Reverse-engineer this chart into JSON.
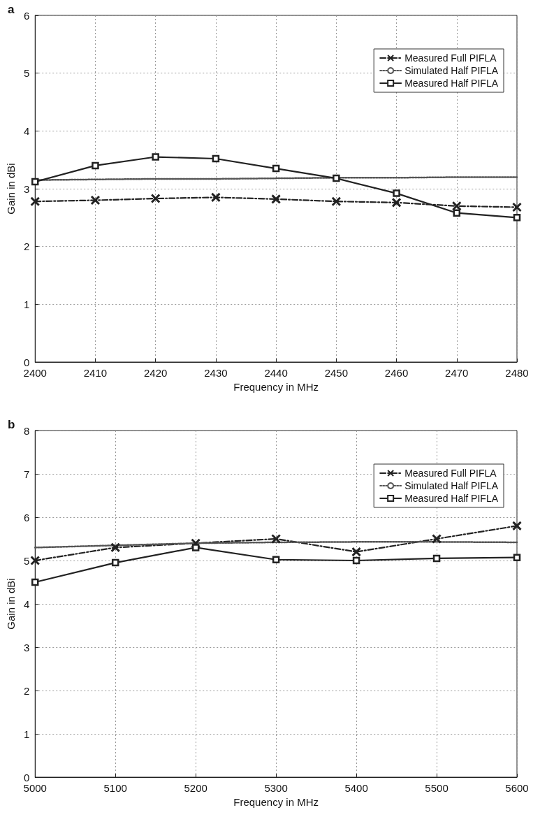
{
  "chart_data": [
    {
      "type": "line",
      "title": "a",
      "xlabel": "Frequency in MHz",
      "ylabel": "Gain in dBi",
      "x": [
        2400,
        2410,
        2420,
        2430,
        2440,
        2450,
        2460,
        2470,
        2480
      ],
      "xlim": [
        2400,
        2480
      ],
      "xticks": [
        2400,
        2410,
        2420,
        2430,
        2440,
        2450,
        2460,
        2470,
        2480
      ],
      "ylim": [
        0,
        6
      ],
      "yticks": [
        0,
        1,
        2,
        3,
        4,
        5,
        6
      ],
      "grid": true,
      "legend": "top right",
      "series": [
        {
          "name": "Measured Full PIFLA",
          "color": "#222222",
          "marker": "cross",
          "line_style": "dashed",
          "values": [
            2.78,
            2.8,
            2.83,
            2.85,
            2.82,
            2.78,
            2.76,
            2.7,
            2.68
          ]
        },
        {
          "name": "Simulated Half PIFLA",
          "color": "#555555",
          "marker": "none",
          "line_style": "dotted",
          "values": [
            3.15,
            3.16,
            3.17,
            3.17,
            3.18,
            3.19,
            3.19,
            3.2,
            3.2
          ]
        },
        {
          "name": "Measured Half PIFLA",
          "color": "#222222",
          "marker": "square",
          "line_style": "solid",
          "values": [
            3.12,
            3.4,
            3.55,
            3.52,
            3.35,
            3.18,
            2.92,
            2.58,
            2.5
          ]
        }
      ]
    },
    {
      "type": "line",
      "title": "b",
      "xlabel": "Frequency in MHz",
      "ylabel": "Gain in dBi",
      "x": [
        5000,
        5100,
        5200,
        5300,
        5400,
        5500,
        5600
      ],
      "xlim": [
        5000,
        5600
      ],
      "xticks": [
        5000,
        5100,
        5200,
        5300,
        5400,
        5500,
        5600
      ],
      "ylim": [
        0,
        8
      ],
      "yticks": [
        0,
        1,
        2,
        3,
        4,
        5,
        6,
        7,
        8
      ],
      "grid": true,
      "legend": "top right",
      "series": [
        {
          "name": "Measured Full PIFLA",
          "color": "#222222",
          "marker": "cross",
          "line_style": "dashed",
          "values": [
            5.0,
            5.3,
            5.4,
            5.5,
            5.2,
            5.5,
            5.8
          ]
        },
        {
          "name": "Simulated Half PIFLA",
          "color": "#555555",
          "marker": "none",
          "line_style": "dotted",
          "values": [
            5.3,
            5.35,
            5.4,
            5.42,
            5.43,
            5.43,
            5.42
          ]
        },
        {
          "name": "Measured Half PIFLA",
          "color": "#222222",
          "marker": "square",
          "line_style": "solid",
          "values": [
            4.5,
            4.95,
            5.3,
            5.02,
            5.0,
            5.05,
            5.07
          ]
        }
      ]
    }
  ]
}
